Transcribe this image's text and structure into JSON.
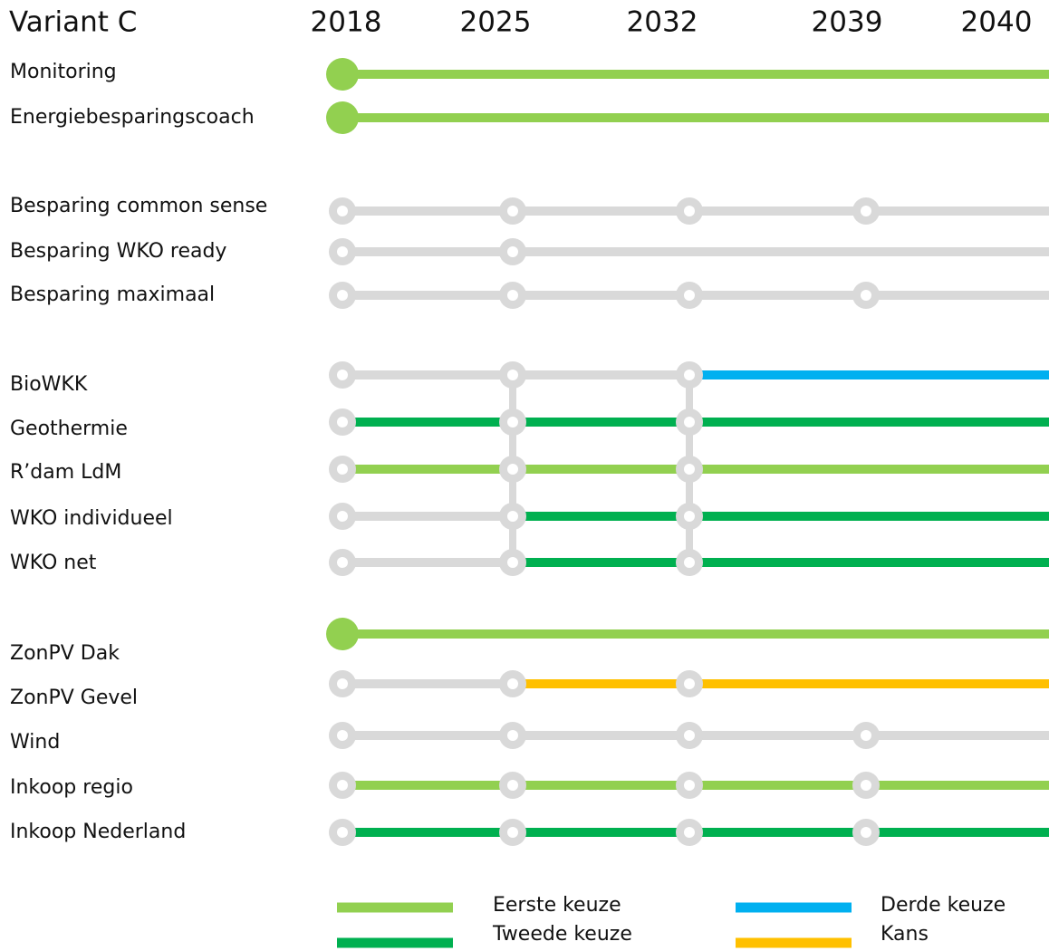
{
  "title": "Variant C",
  "years": [
    "2018",
    "2025",
    "2032",
    "2039",
    "2040"
  ],
  "legend": [
    {
      "label": "Eerste keuze",
      "color": "#92d050"
    },
    {
      "label": "Tweede keuze",
      "color": "#00b050"
    },
    {
      "label": "Derde keuze",
      "color": "#00b0f0"
    },
    {
      "label": "Kans",
      "color": "#ffc000"
    }
  ],
  "inactive_color": "#d9d9d9",
  "rows": [
    {
      "label": "Monitoring",
      "start": "filled",
      "nodes": [],
      "segments": [
        0,
        0,
        0,
        0
      ]
    },
    {
      "label": "Energiebesparingscoach",
      "start": "filled",
      "nodes": [],
      "segments": [
        0,
        0,
        0,
        0
      ]
    },
    {
      "label": "Besparing common sense",
      "start": "hollow",
      "nodes": [
        0,
        1,
        2,
        3
      ],
      "segments": [
        null,
        null,
        null,
        null
      ]
    },
    {
      "label": "Besparing WKO ready",
      "start": "hollow",
      "nodes": [
        0,
        1
      ],
      "segments": [
        null,
        null,
        null,
        null
      ]
    },
    {
      "label": "Besparing maximaal",
      "start": "hollow",
      "nodes": [
        0,
        1,
        2,
        3
      ],
      "segments": [
        null,
        null,
        null,
        null
      ]
    },
    {
      "label": "BioWKK",
      "start": "hollow",
      "nodes": [
        0,
        1,
        2
      ],
      "segments": [
        null,
        null,
        2,
        2
      ]
    },
    {
      "label": "Geothermie",
      "start": "hollow",
      "nodes": [
        0,
        1,
        2
      ],
      "segments": [
        1,
        1,
        1,
        1
      ]
    },
    {
      "label": "R’dam LdM",
      "start": "hollow",
      "nodes": [
        0,
        1,
        2
      ],
      "segments": [
        0,
        0,
        0,
        0
      ]
    },
    {
      "label": "WKO individueel",
      "start": "hollow",
      "nodes": [
        0,
        1,
        2
      ],
      "segments": [
        null,
        1,
        1,
        1
      ]
    },
    {
      "label": "WKO net",
      "start": "hollow",
      "nodes": [
        0,
        1,
        2
      ],
      "segments": [
        null,
        1,
        1,
        1
      ]
    },
    {
      "label": "ZonPV Dak",
      "start": "filled",
      "nodes": [],
      "segments": [
        0,
        0,
        0,
        0
      ]
    },
    {
      "label": "ZonPV Gevel",
      "start": "hollow",
      "nodes": [
        0,
        1,
        2
      ],
      "segments": [
        null,
        3,
        3,
        3
      ]
    },
    {
      "label": "Wind",
      "start": "hollow",
      "nodes": [
        0,
        1,
        2,
        3
      ],
      "segments": [
        null,
        null,
        null,
        null
      ]
    },
    {
      "label": "Inkoop regio",
      "start": "hollow",
      "nodes": [
        0,
        1,
        2,
        3
      ],
      "segments": [
        0,
        0,
        0,
        0
      ]
    },
    {
      "label": "Inkoop Nederland",
      "start": "hollow",
      "nodes": [
        0,
        1,
        2,
        3
      ],
      "segments": [
        1,
        1,
        1,
        1
      ]
    }
  ]
}
